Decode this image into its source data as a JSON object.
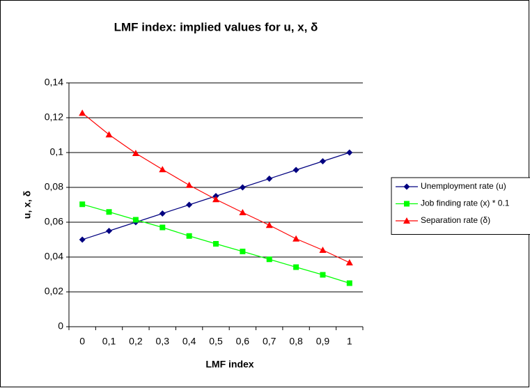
{
  "chart_data": {
    "type": "line",
    "title": "LMF index: implied values for u, x, δ",
    "x_label": "LMF index",
    "y_label": "u, x, δ",
    "categories": [
      "0",
      "0,1",
      "0,2",
      "0,3",
      "0,4",
      "0,5",
      "0,6",
      "0,7",
      "0,8",
      "0,9",
      "1"
    ],
    "series": [
      {
        "name": "Unemployment rate (u)",
        "color": "#000080",
        "marker": "diamond",
        "values": [
          0.05,
          0.055,
          0.06,
          0.065,
          0.07,
          0.075,
          0.08,
          0.085,
          0.09,
          0.095,
          0.1
        ]
      },
      {
        "name": "Job finding rate (x) * 0.1",
        "color": "#00ff00",
        "marker": "square",
        "values": [
          0.0703,
          0.0659,
          0.0614,
          0.057,
          0.0521,
          0.0476,
          0.0432,
          0.0387,
          0.0342,
          0.0298,
          0.025
        ]
      },
      {
        "name": "Separation rate (δ)",
        "color": "#ff0000",
        "marker": "triangle",
        "values": [
          0.1227,
          0.1103,
          0.0996,
          0.0903,
          0.0813,
          0.0731,
          0.0656,
          0.0583,
          0.0505,
          0.044,
          0.0368
        ]
      }
    ],
    "ylim": [
      0,
      0.14
    ],
    "yticks": [
      0,
      {
        "value": 0.02,
        "label": "0,02"
      },
      {
        "value": 0.04,
        "label": "0,04"
      },
      {
        "value": 0.06,
        "label": "0,06"
      },
      {
        "value": 0.08,
        "label": "0,08"
      },
      {
        "value": 0.1,
        "label": "0,1"
      },
      {
        "value": 0.12,
        "label": "0,12"
      },
      {
        "value": 0.14,
        "label": "0,14"
      }
    ],
    "grid": true,
    "legend": "right"
  }
}
